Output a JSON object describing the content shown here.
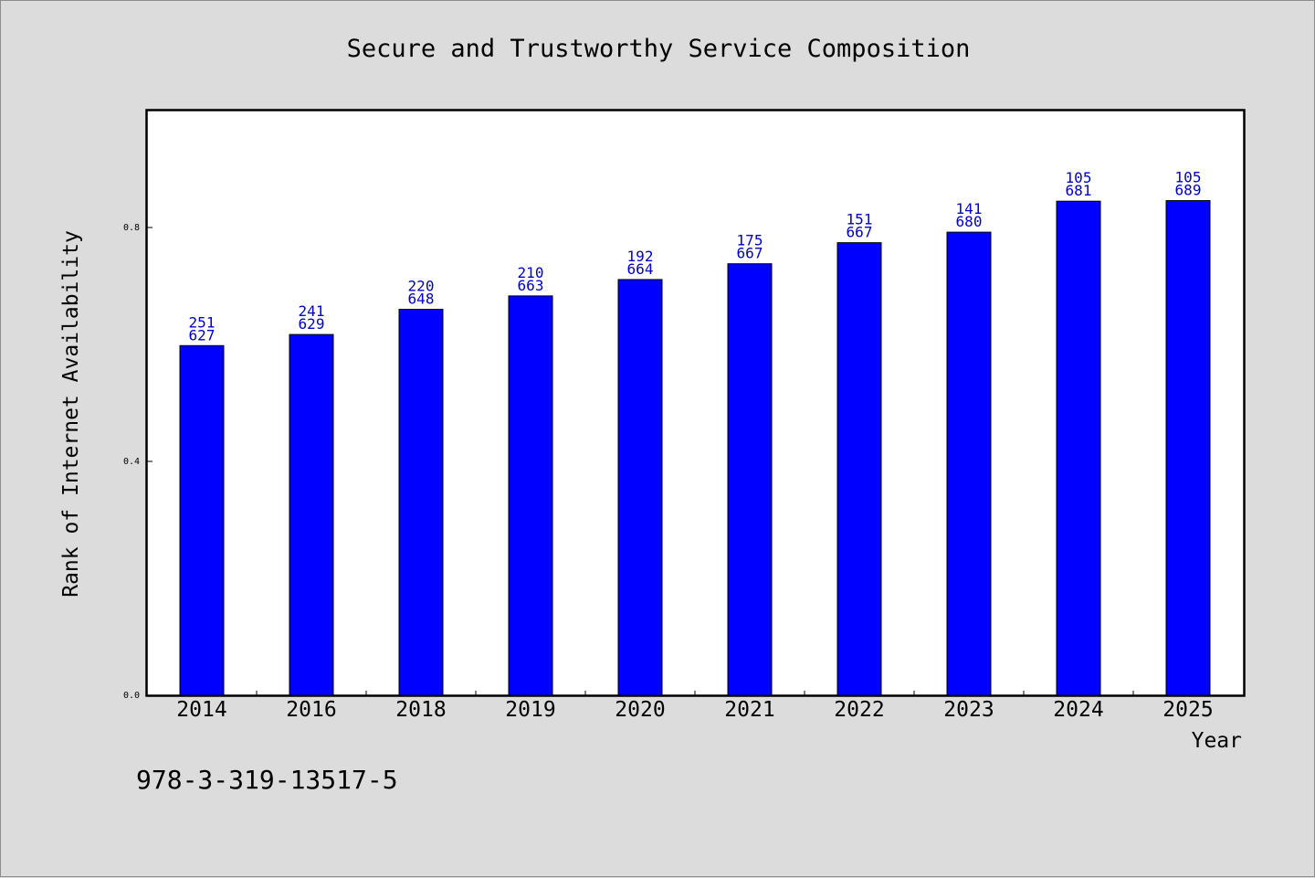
{
  "chart_data": {
    "type": "bar",
    "title": "Secure and Trustworthy Service Composition",
    "xlabel": "Year",
    "ylabel": "Rank of Internet Availability",
    "categories": [
      "2014",
      "2016",
      "2018",
      "2019",
      "2020",
      "2021",
      "2022",
      "2023",
      "2024",
      "2025"
    ],
    "values": [
      0.598,
      0.617,
      0.66,
      0.683,
      0.711,
      0.738,
      0.774,
      0.792,
      0.845,
      0.846
    ],
    "labels_top": [
      "251",
      "241",
      "220",
      "210",
      "192",
      "175",
      "151",
      "141",
      "105",
      "105"
    ],
    "labels_bottom": [
      "627",
      "629",
      "648",
      "663",
      "664",
      "667",
      "667",
      "680",
      "681",
      "689"
    ],
    "yticks": [
      "0.0",
      "0.4",
      "0.8"
    ],
    "ytick_values": [
      0.0,
      0.4,
      0.8
    ],
    "ylim": [
      0,
      1.0
    ],
    "grid": false,
    "bar_color": "#0000ff",
    "label_color": "#0000cc"
  },
  "footnote": "978-3-319-13517-5"
}
